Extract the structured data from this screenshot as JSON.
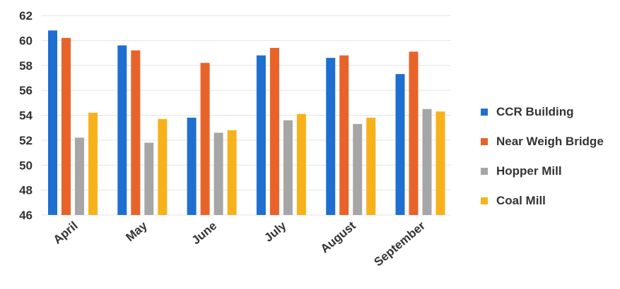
{
  "chart_data": {
    "type": "bar",
    "categories": [
      "April",
      "May",
      "June",
      "July",
      "August",
      "September"
    ],
    "series": [
      {
        "name": "CCR Building",
        "color": "#1f6fd1",
        "values": [
          60.8,
          59.6,
          53.8,
          58.8,
          58.6,
          57.3
        ]
      },
      {
        "name": "Near Weigh Bridge",
        "color": "#e8632a",
        "values": [
          60.2,
          59.2,
          58.2,
          59.4,
          58.8,
          59.1
        ]
      },
      {
        "name": "Hopper Mill",
        "color": "#a6a6a6",
        "values": [
          52.2,
          51.8,
          52.6,
          53.6,
          53.3,
          54.5
        ]
      },
      {
        "name": "Coal Mill",
        "color": "#f7b21b",
        "values": [
          54.2,
          53.7,
          52.8,
          54.1,
          53.8,
          54.3
        ]
      }
    ],
    "ylim": [
      46,
      62
    ],
    "yticks": [
      46,
      48,
      50,
      52,
      54,
      56,
      58,
      60,
      62
    ],
    "grid": true,
    "legend_position": "right"
  }
}
